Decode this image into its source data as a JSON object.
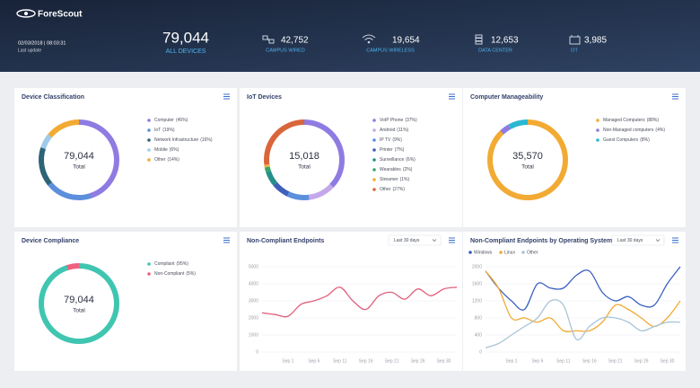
{
  "header": {
    "logo": "ForeScout",
    "timestamp": "02/03/2018 | 08:03:31",
    "timestamp_label": "Last update",
    "total": "79,044",
    "total_label": "ALL DEVICES",
    "stats": [
      {
        "value": "42,752",
        "label": "CAMPUS WIRED"
      },
      {
        "value": "19,654",
        "label": "CAMPUS WIRELESS"
      },
      {
        "value": "12,653",
        "label": "DATA CENTER"
      },
      {
        "value": "3,985",
        "label": "OT"
      }
    ]
  },
  "chart_data": [
    {
      "type": "donut",
      "title": "Device Classification",
      "categories": [
        "Computer",
        "IoT",
        "Network Infrastructure",
        "Mobile",
        "Other"
      ],
      "values": [
        45,
        19,
        16,
        6,
        14
      ],
      "value_labels": [
        "(45%)",
        "(19%)",
        "(16%)",
        "(6%)",
        "(14%)"
      ],
      "colors": [
        "#8f7be2",
        "#5c8fdc",
        "#2d6477",
        "#9fcbe9",
        "#f2aa33"
      ],
      "center_value": "79,044",
      "center_label": "Total"
    },
    {
      "type": "donut",
      "title": "IoT Devices",
      "categories": [
        "VoIP Phone",
        "Android",
        "IP TV",
        "Printer",
        "Surveillance",
        "Wearables",
        "Streamer",
        "Other"
      ],
      "values": [
        37,
        11,
        9,
        7,
        6,
        2,
        1,
        27
      ],
      "value_labels": [
        "(37%)",
        "(11%)",
        "(9%)",
        "(7%)",
        "(6%)",
        "(2%)",
        "(1%)",
        "(27%)"
      ],
      "colors": [
        "#8f7be2",
        "#c4a8ea",
        "#5c8fdc",
        "#3f5fb8",
        "#25908a",
        "#38a66a",
        "#f2aa33",
        "#d9663b"
      ],
      "center_value": "15,018",
      "center_label": "Total"
    },
    {
      "type": "donut",
      "title": "Computer Manageability",
      "categories": [
        "Managed Computers",
        "Non-Managed computers",
        "Guest Computers"
      ],
      "values": [
        88,
        4,
        8
      ],
      "value_labels": [
        "(88%)",
        "(4%)",
        "(8%)"
      ],
      "colors": [
        "#f2aa33",
        "#8f7be2",
        "#2ab7d1"
      ],
      "center_value": "35,570",
      "center_label": "Total"
    },
    {
      "type": "donut",
      "title": "Device Compliance",
      "categories": [
        "Compliant",
        "Non-Compliant"
      ],
      "values": [
        95,
        5
      ],
      "value_labels": [
        "(95%)",
        "(5%)"
      ],
      "colors": [
        "#40c5b1",
        "#f0607f"
      ],
      "center_value": "79,044",
      "center_label": "Total"
    },
    {
      "type": "line",
      "title": "Non-Compliant Endpoints",
      "period": "Last 30 days",
      "categories": [
        null,
        null,
        "Sep 1",
        null,
        "Sep 6",
        null,
        "Sep 11",
        null,
        "Sep 16",
        null,
        "Sep 21",
        null,
        "Sep 26",
        null,
        "Sep 30",
        null
      ],
      "values": [
        2300,
        2200,
        2100,
        2800,
        3000,
        3300,
        3800,
        3000,
        2500,
        3300,
        3500,
        3100,
        3700,
        3300,
        3700,
        3800
      ],
      "color": "#e2607c",
      "ylim": [
        0,
        5000
      ],
      "yticks": [
        0,
        1000,
        2000,
        3000,
        4000,
        5000
      ],
      "grid": true
    },
    {
      "type": "line",
      "title": "Non-Compliant Endpoints by Operating System",
      "period": "Last 30 days",
      "categories": [
        null,
        null,
        "Sep 1",
        null,
        "Sep 6",
        null,
        "Sep 11",
        null,
        "Sep 16",
        null,
        "Sep 21",
        null,
        "Sep 26",
        null,
        "Sep 30",
        null
      ],
      "series": [
        {
          "name": "Windows",
          "color": "#3a5fc2",
          "values": [
            1900,
            1500,
            1200,
            1000,
            1600,
            1500,
            1500,
            1800,
            1900,
            1400,
            1200,
            1300,
            1100,
            1100,
            1600,
            2000
          ]
        },
        {
          "name": "Linux",
          "color": "#f2aa33",
          "values": [
            1900,
            1500,
            800,
            800,
            700,
            800,
            500,
            500,
            500,
            700,
            1100,
            1000,
            800,
            600,
            800,
            1200
          ]
        },
        {
          "name": "Other",
          "color": "#a9c4d8",
          "values": [
            100,
            200,
            400,
            600,
            800,
            1200,
            1100,
            300,
            600,
            800,
            800,
            700,
            500,
            600,
            700,
            700
          ]
        }
      ],
      "ylim": [
        0,
        2000
      ],
      "yticks": [
        0,
        400,
        800,
        1200,
        1600,
        2000
      ],
      "grid": true
    }
  ]
}
